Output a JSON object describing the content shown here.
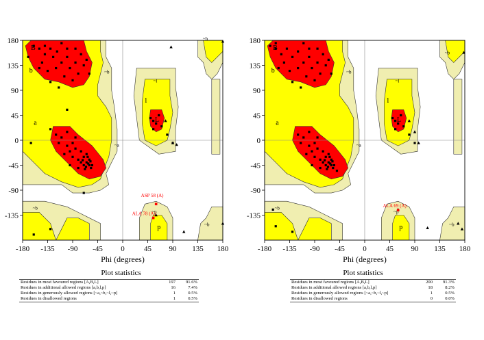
{
  "chart_data": [
    {
      "type": "scatter",
      "title": "",
      "xlabel": "Phi (degrees)",
      "ylabel": "",
      "xlim": [
        -180,
        180
      ],
      "ylim": [
        -180,
        180
      ],
      "xticks": [
        "-180",
        "-135",
        "-90",
        "-45",
        "0",
        "45",
        "90",
        "135",
        "180"
      ],
      "yticks": [
        "180",
        "135",
        "90",
        "45",
        "0",
        "-45",
        "-90",
        "-135"
      ],
      "colors": {
        "core": "#ff0000",
        "allowed": "#ffff00",
        "generous": "#f0eeb0",
        "point": "#000000",
        "outlier": "#ff0000"
      },
      "region_labels": [
        {
          "text": "B",
          "phi": -165,
          "psi": 163
        },
        {
          "text": "b",
          "phi": -168,
          "psi": 122
        },
        {
          "text": "a",
          "phi": -160,
          "psi": 28
        },
        {
          "text": "~b",
          "phi": -33,
          "psi": 120
        },
        {
          "text": "~a",
          "phi": -15,
          "psi": -12
        },
        {
          "text": "~l",
          "phi": 55,
          "psi": 104
        },
        {
          "text": "l",
          "phi": 40,
          "psi": 68
        },
        {
          "text": "L",
          "phi": 58,
          "psi": 33
        },
        {
          "text": "~b",
          "phi": 144,
          "psi": 180
        },
        {
          "text": "~b",
          "phi": -162,
          "psi": -125
        },
        {
          "text": "~p",
          "phi": 52,
          "psi": -132
        },
        {
          "text": "p",
          "phi": 62,
          "psi": -160
        },
        {
          "text": "~b",
          "phi": 147,
          "psi": -155
        }
      ],
      "labeled_residues": [
        {
          "text": "ASP 58 (A)",
          "phi": 60,
          "psi": -107
        },
        {
          "text": "ALA 78 (A)",
          "phi": 44,
          "psi": -140
        }
      ],
      "points": [
        {
          "phi": -160,
          "psi": 170
        },
        {
          "phi": -150,
          "psi": 165
        },
        {
          "phi": -140,
          "psi": 155
        },
        {
          "phi": -130,
          "psi": 165
        },
        {
          "phi": -125,
          "psi": 150
        },
        {
          "phi": -118,
          "psi": 160
        },
        {
          "phi": -110,
          "psi": 140
        },
        {
          "phi": -100,
          "psi": 165
        },
        {
          "phi": -95,
          "psi": 130
        },
        {
          "phi": -85,
          "psi": 140
        },
        {
          "phi": -80,
          "psi": 120
        },
        {
          "phi": -75,
          "psi": 155
        },
        {
          "phi": -70,
          "psi": 135
        },
        {
          "phi": -65,
          "psi": 145
        },
        {
          "phi": -120,
          "psi": 130
        },
        {
          "phi": -135,
          "psi": 125
        },
        {
          "phi": -145,
          "psi": 140
        },
        {
          "phi": -105,
          "psi": 115
        },
        {
          "phi": -90,
          "psi": 108
        },
        {
          "phi": -130,
          "psi": 105
        },
        {
          "phi": -150,
          "psi": 130
        },
        {
          "phi": -110,
          "psi": 175
        },
        {
          "phi": -60,
          "psi": 120
        },
        {
          "phi": -100,
          "psi": 150
        },
        {
          "phi": -85,
          "psi": 165
        },
        {
          "phi": -140,
          "psi": 170
        },
        {
          "phi": -115,
          "psi": 95
        },
        {
          "phi": -100,
          "psi": -10
        },
        {
          "phi": -95,
          "psi": -20
        },
        {
          "phi": -90,
          "psi": -30
        },
        {
          "phi": -85,
          "psi": -15
        },
        {
          "phi": -80,
          "psi": -35
        },
        {
          "phi": -75,
          "psi": -40
        },
        {
          "phi": -70,
          "psi": -45
        },
        {
          "phi": -65,
          "psi": -40
        },
        {
          "phi": -60,
          "psi": -45
        },
        {
          "phi": -70,
          "psi": -30
        },
        {
          "phi": -65,
          "psi": -25
        },
        {
          "phi": -60,
          "psi": -35
        },
        {
          "phi": -62,
          "psi": -42
        },
        {
          "phi": -58,
          "psi": -38
        },
        {
          "phi": -66,
          "psi": -48
        },
        {
          "phi": -72,
          "psi": -36
        },
        {
          "phi": -68,
          "psi": -52
        },
        {
          "phi": -63,
          "psi": -30
        },
        {
          "phi": -55,
          "psi": -45
        },
        {
          "phi": -57,
          "psi": -50
        },
        {
          "phi": -75,
          "psi": -20
        },
        {
          "phi": -90,
          "psi": -5
        },
        {
          "phi": -110,
          "psi": 5
        },
        {
          "phi": -105,
          "psi": -25
        },
        {
          "phi": -120,
          "psi": 10
        },
        {
          "phi": -80,
          "psi": -50
        },
        {
          "phi": -95,
          "psi": -45
        },
        {
          "phi": -115,
          "psi": -5
        },
        {
          "phi": -130,
          "psi": 20
        },
        {
          "phi": -100,
          "psi": 15
        },
        {
          "phi": -85,
          "psi": 5
        },
        {
          "phi": 50,
          "psi": 40
        },
        {
          "phi": 55,
          "psi": 35
        },
        {
          "phi": 60,
          "psi": 30
        },
        {
          "phi": 65,
          "psi": 45
        },
        {
          "phi": 70,
          "psi": 25
        },
        {
          "phi": 55,
          "psi": 20
        },
        {
          "phi": 80,
          "psi": 10
        },
        {
          "phi": 90,
          "psi": -5
        },
        {
          "phi": -170,
          "psi": 150
        },
        {
          "phi": -165,
          "psi": -5
        },
        {
          "phi": -100,
          "psi": 55
        },
        {
          "phi": -70,
          "psi": -95
        },
        {
          "phi": -160,
          "psi": -170
        },
        {
          "phi": -130,
          "psi": -160
        }
      ],
      "glycines": [
        {
          "phi": 87,
          "psi": 168
        },
        {
          "phi": 90,
          "psi": -5
        },
        {
          "phi": 77,
          "psi": 35
        },
        {
          "phi": 60,
          "psi": -135
        },
        {
          "phi": 110,
          "psi": -165
        },
        {
          "phi": 180,
          "psi": -150
        },
        {
          "phi": 180,
          "psi": 178
        },
        {
          "phi": 97,
          "psi": -8
        }
      ],
      "outliers": [
        {
          "phi": 60,
          "psi": -115
        },
        {
          "phi": 55,
          "psi": -140
        }
      ]
    },
    {
      "type": "scatter",
      "title": "",
      "xlabel": "Phi (degrees)",
      "ylabel": "",
      "xlim": [
        -180,
        180
      ],
      "ylim": [
        -180,
        180
      ],
      "xticks": [
        "-180",
        "-135",
        "-90",
        "-45",
        "0",
        "45",
        "90",
        "135",
        "180"
      ],
      "yticks": [
        "180",
        "135",
        "90",
        "45",
        "0",
        "-45",
        "-90",
        "-135"
      ],
      "colors": {
        "core": "#ff0000",
        "allowed": "#ffff00",
        "generous": "#f0eeb0",
        "point": "#000000",
        "outlier": "#ff0000"
      },
      "region_labels": [
        {
          "text": "B",
          "phi": -165,
          "psi": 163
        },
        {
          "text": "b",
          "phi": -168,
          "psi": 122
        },
        {
          "text": "a",
          "phi": -160,
          "psi": 28
        },
        {
          "text": "~b",
          "phi": -33,
          "psi": 120
        },
        {
          "text": "~a",
          "phi": -15,
          "psi": -12
        },
        {
          "text": "~l",
          "phi": 55,
          "psi": 104
        },
        {
          "text": "l",
          "phi": 40,
          "psi": 68
        },
        {
          "text": "L",
          "phi": 58,
          "psi": 33
        },
        {
          "text": "~b",
          "phi": 144,
          "psi": 155
        },
        {
          "text": "~b",
          "phi": -162,
          "psi": -125
        },
        {
          "text": "~p",
          "phi": 52,
          "psi": -132
        },
        {
          "text": "p",
          "phi": 62,
          "psi": -160
        },
        {
          "text": "~b",
          "phi": 152,
          "psi": -155
        }
      ],
      "labeled_residues": [
        {
          "text": "ALA 69 (A)",
          "phi": 60,
          "psi": -126
        }
      ],
      "points": [
        {
          "phi": -170,
          "psi": 170
        },
        {
          "phi": -160,
          "psi": 165
        },
        {
          "phi": -150,
          "psi": 155
        },
        {
          "phi": -140,
          "psi": 165
        },
        {
          "phi": -130,
          "psi": 150
        },
        {
          "phi": -120,
          "psi": 160
        },
        {
          "phi": -110,
          "psi": 140
        },
        {
          "phi": -100,
          "psi": 165
        },
        {
          "phi": -95,
          "psi": 130
        },
        {
          "phi": -85,
          "psi": 140
        },
        {
          "phi": -80,
          "psi": 120
        },
        {
          "phi": -75,
          "psi": 155
        },
        {
          "phi": -70,
          "psi": 135
        },
        {
          "phi": -65,
          "psi": 145
        },
        {
          "phi": -120,
          "psi": 130
        },
        {
          "phi": -135,
          "psi": 125
        },
        {
          "phi": -145,
          "psi": 140
        },
        {
          "phi": -105,
          "psi": 115
        },
        {
          "phi": -90,
          "psi": 108
        },
        {
          "phi": -130,
          "psi": 105
        },
        {
          "phi": -155,
          "psi": 130
        },
        {
          "phi": -110,
          "psi": 175
        },
        {
          "phi": -60,
          "psi": 120
        },
        {
          "phi": -100,
          "psi": 150
        },
        {
          "phi": -85,
          "psi": 165
        },
        {
          "phi": -160,
          "psi": 175
        },
        {
          "phi": -115,
          "psi": 95
        },
        {
          "phi": -100,
          "psi": -10
        },
        {
          "phi": -95,
          "psi": -20
        },
        {
          "phi": -90,
          "psi": -30
        },
        {
          "phi": -85,
          "psi": -15
        },
        {
          "phi": -80,
          "psi": -35
        },
        {
          "phi": -75,
          "psi": -40
        },
        {
          "phi": -70,
          "psi": -45
        },
        {
          "phi": -65,
          "psi": -40
        },
        {
          "phi": -60,
          "psi": -45
        },
        {
          "phi": -70,
          "psi": -30
        },
        {
          "phi": -65,
          "psi": -25
        },
        {
          "phi": -60,
          "psi": -35
        },
        {
          "phi": -62,
          "psi": -42
        },
        {
          "phi": -58,
          "psi": -38
        },
        {
          "phi": -66,
          "psi": -48
        },
        {
          "phi": -72,
          "psi": -36
        },
        {
          "phi": -68,
          "psi": -52
        },
        {
          "phi": -63,
          "psi": -30
        },
        {
          "phi": -55,
          "psi": -45
        },
        {
          "phi": -57,
          "psi": -50
        },
        {
          "phi": -75,
          "psi": -20
        },
        {
          "phi": -90,
          "psi": -5
        },
        {
          "phi": -110,
          "psi": 5
        },
        {
          "phi": -105,
          "psi": -25
        },
        {
          "phi": -120,
          "psi": 10
        },
        {
          "phi": -80,
          "psi": -50
        },
        {
          "phi": -95,
          "psi": -45
        },
        {
          "phi": -115,
          "psi": -5
        },
        {
          "phi": -50,
          "psi": -55
        },
        {
          "phi": -100,
          "psi": 15
        },
        {
          "phi": -85,
          "psi": 5
        },
        {
          "phi": 50,
          "psi": 40
        },
        {
          "phi": 55,
          "psi": 35
        },
        {
          "phi": 60,
          "psi": 30
        },
        {
          "phi": 65,
          "psi": 45
        },
        {
          "phi": 70,
          "psi": 25
        },
        {
          "phi": 55,
          "psi": 20
        },
        {
          "phi": 80,
          "psi": 10
        },
        {
          "phi": 90,
          "psi": -5
        },
        {
          "phi": -165,
          "psi": -125
        },
        {
          "phi": -160,
          "psi": -155
        },
        {
          "phi": -130,
          "psi": -165
        }
      ],
      "glycines": [
        {
          "phi": 60,
          "psi": -125
        },
        {
          "phi": 90,
          "psi": 15
        },
        {
          "phi": 80,
          "psi": 35
        },
        {
          "phi": 168,
          "psi": -150
        },
        {
          "phi": 175,
          "psi": -160
        },
        {
          "phi": 97,
          "psi": -5
        },
        {
          "phi": 113,
          "psi": -158
        },
        {
          "phi": 178,
          "psi": 158
        }
      ],
      "outliers": [
        {
          "phi": 60,
          "psi": -126
        }
      ]
    }
  ],
  "stats": [
    {
      "title": "Plot statistics",
      "rows": [
        {
          "label": "Residues in most favoured regions  [A,B,L]",
          "count": "197",
          "pct": "91.6%"
        },
        {
          "label": "Residues in additional allowed regions  [a,b,l,p]",
          "count": "16",
          "pct": "7.4%"
        },
        {
          "label": "Residues in generously allowed regions  [~a,~b,~l,~p]",
          "count": "1",
          "pct": "0.5%"
        },
        {
          "label": "Residues in disallowed regions",
          "count": "1",
          "pct": "0.5%"
        }
      ]
    },
    {
      "title": "Plot statistics",
      "rows": [
        {
          "label": "Residues in most favoured regions  [A,B,L]",
          "count": "200",
          "pct": "91.3%"
        },
        {
          "label": "Residues in additional allowed regions  [a,b,l,p]",
          "count": "18",
          "pct": "8.2%"
        },
        {
          "label": "Residues in generously allowed regions  [~a,~b,~l,~p]",
          "count": "1",
          "pct": "0.5%"
        },
        {
          "label": "Residues in disallowed regions",
          "count": "0",
          "pct": "0.0%"
        }
      ]
    }
  ]
}
